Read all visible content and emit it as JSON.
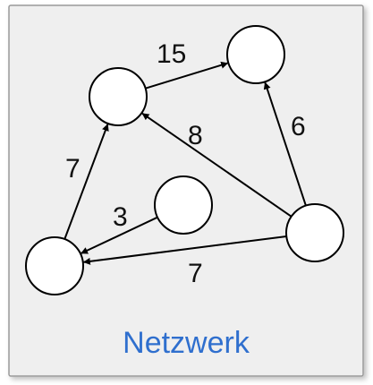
{
  "diagram": {
    "caption": "Netzwerk",
    "colors": {
      "panel_fill": "#efefef",
      "panel_border": "#9a9a9a",
      "caption": "#2f6fce",
      "node_fill": "#ffffff",
      "node_stroke": "#000000",
      "edge": "#000000"
    },
    "nodes": [
      {
        "id": "n1"
      },
      {
        "id": "n2"
      },
      {
        "id": "n3"
      },
      {
        "id": "n4"
      },
      {
        "id": "n5"
      }
    ],
    "edges": [
      {
        "id": "e1",
        "from": "n1",
        "to": "n2",
        "weight": "15"
      },
      {
        "id": "e2",
        "from": "n5",
        "to": "n1",
        "weight": "8"
      },
      {
        "id": "e3",
        "from": "n5",
        "to": "n2",
        "weight": "6"
      },
      {
        "id": "e4",
        "from": "n4",
        "to": "n1",
        "weight": "7"
      },
      {
        "id": "e5",
        "from": "n3",
        "to": "n4",
        "weight": "3"
      },
      {
        "id": "e6",
        "from": "n5",
        "to": "n4",
        "weight": "7"
      }
    ]
  }
}
